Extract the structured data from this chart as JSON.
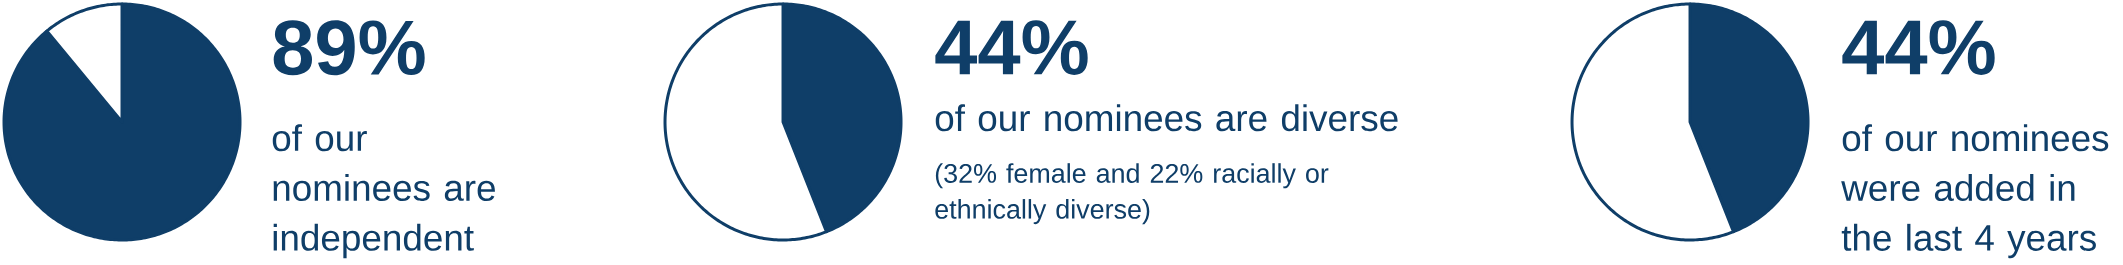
{
  "chart_data": [
    {
      "type": "pie",
      "categories": [
        null,
        null
      ],
      "values": [
        89,
        11
      ],
      "colors": [
        "#0f3e68",
        "#ffffff"
      ],
      "value_labels": [
        "89%",
        null
      ],
      "subtitle": "of our nominees are independent"
    },
    {
      "type": "pie",
      "categories": [
        null,
        null
      ],
      "values": [
        44,
        56
      ],
      "colors": [
        "#0f3e68",
        "#ffffff"
      ],
      "value_labels": [
        "44%",
        null
      ],
      "subtitle": "of our nominees are diverse",
      "annotations": [
        "(32% female and 22% racially or ethnically diverse)"
      ]
    },
    {
      "type": "pie",
      "categories": [
        null,
        null
      ],
      "values": [
        44,
        56
      ],
      "colors": [
        "#0f3e68",
        "#ffffff"
      ],
      "value_labels": [
        "44%",
        null
      ],
      "subtitle": "of our nominees were added in the last 4 years"
    }
  ]
}
